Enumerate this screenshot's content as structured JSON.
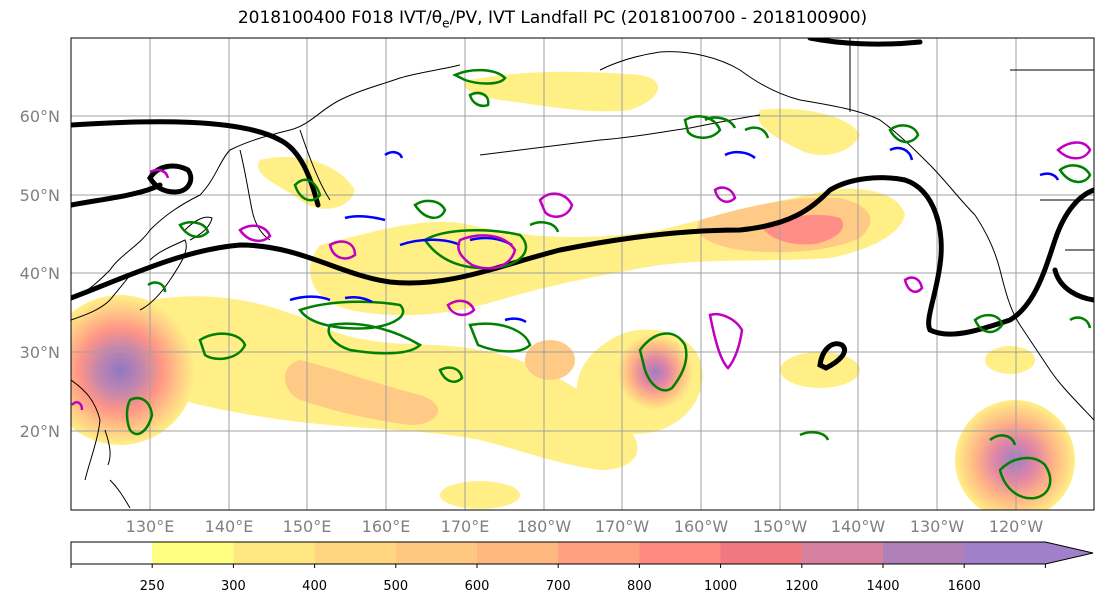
{
  "figure": {
    "title": "2018100400 F018 IVT/θe/PV, IVT Landfall PC (2018100700 - 2018100900)"
  },
  "map": {
    "lat_labels": [
      "60°N",
      "50°N",
      "40°N",
      "30°N",
      "20°N"
    ],
    "lon_labels": [
      "130°E",
      "140°E",
      "150°E",
      "160°E",
      "170°E",
      "180°W",
      "170°W",
      "160°W",
      "150°W",
      "140°W",
      "130°W",
      "120°W"
    ],
    "colors": {
      "coast": "#000000",
      "grid": "#a0a0a0",
      "height_contour": "#000000",
      "theta_e": "#008000",
      "pv_blue": "#0000ff",
      "pv_magenta": "#c000c0"
    }
  },
  "colorbar": {
    "labels": [
      "250",
      "300",
      "400",
      "500",
      "600",
      "700",
      "800",
      "1000",
      "1200",
      "1400",
      "1600"
    ],
    "colors": [
      "#ffffff",
      "#ffff80",
      "#ffe880",
      "#ffd680",
      "#ffc880",
      "#ffb880",
      "#ffa080",
      "#ff8a80",
      "#f07880",
      "#d880a0",
      "#b080b8",
      "#a080c8",
      "#a080c8"
    ]
  }
}
